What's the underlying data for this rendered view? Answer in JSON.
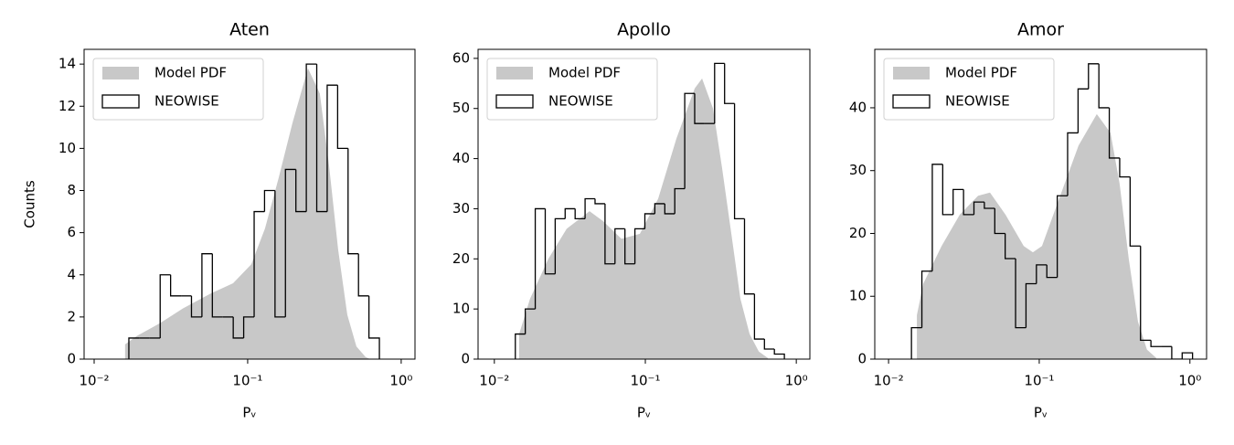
{
  "chart_data": [
    {
      "type": "histogram",
      "title": "Aten",
      "xlabel": "Pᵥ",
      "ylabel": "Counts",
      "xscale": "log",
      "xlim": [
        0.0086,
        1.23
      ],
      "ylim": [
        0,
        14.7
      ],
      "xticks": [
        {
          "value": 0.01,
          "label": "10⁻²"
        },
        {
          "value": 0.1,
          "label": "10⁻¹"
        },
        {
          "value": 1,
          "label": "10⁰"
        }
      ],
      "yticks": [
        0,
        2,
        4,
        6,
        8,
        10,
        12,
        14
      ],
      "legend": "upper left",
      "series": [
        {
          "name": "Model PDF",
          "color": "#c8c8c8",
          "x": [
            0.0159,
            0.019,
            0.0268,
            0.0378,
            0.057,
            0.0803,
            0.1056,
            0.1297,
            0.1592,
            0.1957,
            0.247,
            0.2951,
            0.3388,
            0.3884,
            0.4458,
            0.5108,
            0.5866,
            0.6281
          ],
          "values": [
            0.7,
            1.1,
            1.7,
            2.4,
            3.1,
            3.6,
            4.5,
            6.2,
            8.6,
            11.2,
            13.8,
            12.6,
            9.2,
            5.2,
            2.1,
            0.6,
            0.1,
            0
          ]
        },
        {
          "name": "NEOWISE",
          "color": "#000000",
          "bins": [
            0.01683,
            0.01968,
            0.02301,
            0.02692,
            0.03148,
            0.03681,
            0.04305,
            0.05035,
            0.05888,
            0.06887,
            0.08054,
            0.09419,
            0.1102,
            0.1288,
            0.1507,
            0.1762,
            0.2061,
            0.241,
            0.2818,
            0.3296,
            0.3855,
            0.4508,
            0.5272,
            0.6166,
            0.7211
          ],
          "values": [
            1,
            1,
            1,
            4,
            3,
            3,
            2,
            5,
            2,
            2,
            1,
            2,
            7,
            8,
            2,
            9,
            7,
            14,
            7,
            13,
            10,
            5,
            3,
            1
          ]
        }
      ]
    },
    {
      "type": "histogram",
      "title": "Apollo",
      "xlabel": "Pᵥ",
      "xscale": "log",
      "xlim": [
        0.0078,
        1.23
      ],
      "ylim": [
        0,
        61.8
      ],
      "xticks": [
        {
          "value": 0.01,
          "label": "10⁻²"
        },
        {
          "value": 0.1,
          "label": "10⁻¹"
        },
        {
          "value": 1,
          "label": "10⁰"
        }
      ],
      "yticks": [
        0,
        10,
        20,
        30,
        40,
        50,
        60
      ],
      "legend": "upper left",
      "series": [
        {
          "name": "Model PDF",
          "color": "#c8c8c8",
          "x": [
            0.01459,
            0.01722,
            0.0228,
            0.03013,
            0.0427,
            0.0526,
            0.0695,
            0.09204,
            0.1216,
            0.1607,
            0.2124,
            0.2376,
            0.2808,
            0.3228,
            0.3713,
            0.4266,
            0.4908,
            0.5649,
            0.6487
          ],
          "values": [
            5,
            12,
            20,
            26,
            29.5,
            27.5,
            24,
            25,
            32,
            44,
            54,
            56,
            50,
            38,
            25,
            12,
            5,
            1.5,
            0.2
          ]
        },
        {
          "name": "NEOWISE",
          "color": "#000000",
          "bins": [
            0.01377,
            0.01603,
            0.01866,
            0.02173,
            0.02529,
            0.02944,
            0.03428,
            0.0399,
            0.04645,
            0.05408,
            0.06295,
            0.07328,
            0.08531,
            0.09931,
            0.1156,
            0.1346,
            0.1567,
            0.1824,
            0.2123,
            0.2472,
            0.2877,
            0.335,
            0.3899,
            0.4539,
            0.5284,
            0.6152,
            0.7161,
            0.8337
          ],
          "values": [
            5,
            10,
            30,
            17,
            28,
            30,
            28,
            32,
            31,
            19,
            26,
            19,
            26,
            29,
            31,
            29,
            34,
            53,
            47,
            47,
            59,
            51,
            28,
            13,
            4,
            2,
            1
          ]
        }
      ]
    },
    {
      "type": "histogram",
      "title": "Amor",
      "xlabel": "Pᵥ",
      "xscale": "log",
      "xlim": [
        0.0081,
        1.29
      ],
      "ylim": [
        0,
        49.3
      ],
      "xticks": [
        {
          "value": 0.01,
          "label": "10⁻²"
        },
        {
          "value": 0.1,
          "label": "10⁻¹"
        },
        {
          "value": 1,
          "label": "10⁰"
        }
      ],
      "yticks": [
        0,
        10,
        20,
        30,
        40
      ],
      "legend": "upper left",
      "series": [
        {
          "name": "Model PDF",
          "color": "#c8c8c8",
          "x": [
            0.01542,
            0.017,
            0.02249,
            0.02971,
            0.03926,
            0.0471,
            0.0597,
            0.07888,
            0.09076,
            0.1043,
            0.1378,
            0.1824,
            0.241,
            0.2972,
            0.3412,
            0.3926,
            0.4519,
            0.5188,
            0.597
          ],
          "values": [
            7,
            12,
            18,
            23,
            26,
            26.5,
            23,
            18,
            17,
            18,
            26,
            34,
            39,
            36,
            28,
            16,
            6,
            1.5,
            0.2
          ]
        },
        {
          "name": "NEOWISE",
          "color": "#000000",
          "bins": [
            0.01419,
            0.01664,
            0.01951,
            0.02288,
            0.02682,
            0.03145,
            0.03687,
            0.04323,
            0.05069,
            0.05942,
            0.06966,
            0.08168,
            0.09577,
            0.1123,
            0.1317,
            0.1543,
            0.181,
            0.2122,
            0.2488,
            0.2917,
            0.342,
            0.401,
            0.4701,
            0.5512,
            0.6463,
            0.7577,
            0.8884,
            1.041
          ],
          "values": [
            5,
            14,
            31,
            23,
            27,
            23,
            25,
            24,
            20,
            16,
            5,
            12,
            15,
            13,
            26,
            36,
            43,
            47,
            40,
            32,
            29,
            18,
            3,
            2,
            2,
            0,
            1
          ]
        }
      ]
    }
  ]
}
